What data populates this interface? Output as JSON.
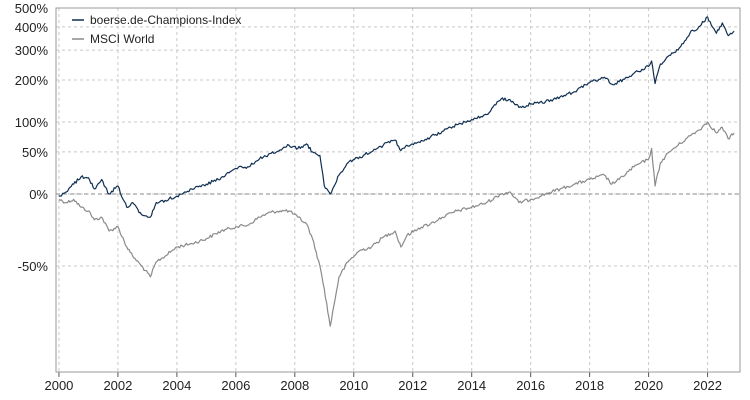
{
  "chart_data": {
    "type": "line",
    "title": "",
    "xlabel": "",
    "ylabel": "",
    "y_scale": "log(1 + return)",
    "xlim": [
      1999.9,
      2023.1
    ],
    "ylim": [
      -82,
      500
    ],
    "x_ticks": [
      2000,
      2002,
      2004,
      2006,
      2008,
      2010,
      2012,
      2014,
      2016,
      2018,
      2020,
      2022
    ],
    "x_tick_labels": [
      "2000",
      "2002",
      "2004",
      "2006",
      "2008",
      "2010",
      "2012",
      "2014",
      "2016",
      "2018",
      "2020",
      "2022"
    ],
    "y_ticks": [
      -50,
      0,
      50,
      100,
      200,
      300,
      400,
      500
    ],
    "y_tick_labels": [
      "-50%",
      "0%",
      "50%",
      "100%",
      "200%",
      "300%",
      "400%",
      "500%"
    ],
    "grid": true,
    "legend_position": "top-left",
    "series": [
      {
        "name": "boerse.de-Champions-Index",
        "color": "#0f2f52",
        "x": [
          2000.0,
          2000.25,
          2000.5,
          2000.75,
          2001.0,
          2001.2,
          2001.45,
          2001.7,
          2002.0,
          2002.3,
          2002.5,
          2002.8,
          2003.1,
          2003.3,
          2003.6,
          2004.0,
          2004.5,
          2005.0,
          2005.5,
          2006.0,
          2006.4,
          2006.8,
          2007.2,
          2007.5,
          2007.8,
          2008.1,
          2008.4,
          2008.6,
          2008.85,
          2009.0,
          2009.2,
          2009.5,
          2009.8,
          2010.2,
          2010.6,
          2011.0,
          2011.4,
          2011.6,
          2011.8,
          2012.2,
          2012.6,
          2013.0,
          2013.5,
          2014.0,
          2014.5,
          2015.0,
          2015.3,
          2015.6,
          2016.0,
          2016.5,
          2017.0,
          2017.5,
          2018.0,
          2018.5,
          2018.75,
          2019.0,
          2019.5,
          2020.0,
          2020.1,
          2020.22,
          2020.4,
          2020.7,
          2021.0,
          2021.4,
          2021.7,
          2022.0,
          2022.3,
          2022.5,
          2022.7,
          2022.9
        ],
        "values": [
          -2,
          2,
          10,
          18,
          17,
          5,
          15,
          0,
          8,
          -12,
          -8,
          -18,
          -20,
          -8,
          -6,
          -2,
          5,
          10,
          17,
          28,
          30,
          40,
          48,
          53,
          60,
          55,
          62,
          50,
          45,
          8,
          0,
          20,
          35,
          43,
          50,
          60,
          68,
          52,
          60,
          65,
          73,
          83,
          95,
          105,
          115,
          150,
          148,
          130,
          138,
          143,
          155,
          168,
          192,
          208,
          188,
          195,
          220,
          242,
          260,
          190,
          250,
          280,
          300,
          370,
          400,
          450,
          370,
          420,
          360,
          380
        ]
      },
      {
        "name": "MSCI World",
        "color": "#8a8a8e",
        "x": [
          2000.0,
          2000.25,
          2000.5,
          2000.75,
          2001.0,
          2001.2,
          2001.45,
          2001.7,
          2002.0,
          2002.3,
          2002.5,
          2002.8,
          2003.1,
          2003.3,
          2003.6,
          2004.0,
          2004.5,
          2005.0,
          2005.5,
          2006.0,
          2006.4,
          2006.8,
          2007.2,
          2007.5,
          2007.8,
          2008.1,
          2008.4,
          2008.6,
          2008.85,
          2009.0,
          2009.2,
          2009.5,
          2009.8,
          2010.2,
          2010.6,
          2011.0,
          2011.4,
          2011.6,
          2011.8,
          2012.2,
          2012.6,
          2013.0,
          2013.5,
          2014.0,
          2014.5,
          2015.0,
          2015.3,
          2015.6,
          2016.0,
          2016.5,
          2017.0,
          2017.5,
          2018.0,
          2018.5,
          2018.75,
          2019.0,
          2019.5,
          2020.0,
          2020.1,
          2020.22,
          2020.4,
          2020.7,
          2021.0,
          2021.4,
          2021.7,
          2022.0,
          2022.3,
          2022.5,
          2022.7,
          2022.9
        ],
        "values": [
          -5,
          -8,
          -5,
          -12,
          -15,
          -22,
          -20,
          -30,
          -27,
          -40,
          -45,
          -50,
          -55,
          -48,
          -45,
          -40,
          -38,
          -35,
          -30,
          -27,
          -26,
          -20,
          -16,
          -15,
          -15,
          -20,
          -25,
          -35,
          -50,
          -60,
          -72,
          -55,
          -48,
          -42,
          -40,
          -34,
          -30,
          -40,
          -33,
          -28,
          -25,
          -20,
          -15,
          -12,
          -8,
          0,
          2,
          -8,
          -5,
          0,
          5,
          10,
          15,
          20,
          10,
          15,
          30,
          40,
          55,
          8,
          35,
          50,
          60,
          75,
          85,
          100,
          80,
          90,
          70,
          80
        ]
      }
    ]
  }
}
